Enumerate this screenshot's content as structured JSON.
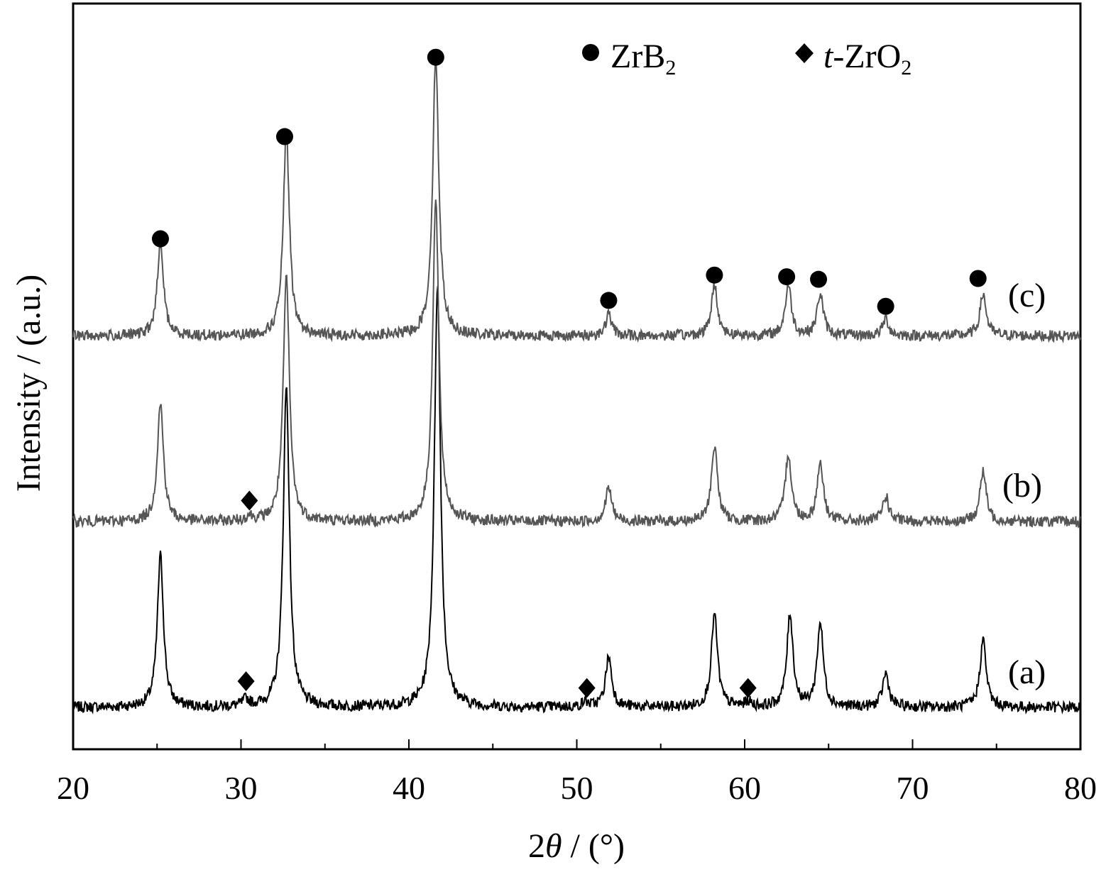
{
  "chart_data": {
    "type": "line",
    "title": "",
    "xlabel_prefix": "2",
    "xlabel_theta": "θ",
    "xlabel_suffix": " / (°)",
    "ylabel": "Intensity / (a.u.)",
    "xlim": [
      20,
      80
    ],
    "x_ticks": [
      20,
      30,
      40,
      50,
      60,
      70,
      80
    ],
    "y_ticks_shown": false,
    "grid": false,
    "legend_position": "top-right",
    "legend": [
      {
        "marker": "circle",
        "label_main": "ZrB",
        "label_sub": "2",
        "label_italic": "",
        "label_after": ""
      },
      {
        "marker": "diamond",
        "label_italic": "t",
        "label_main": "-ZrO",
        "label_sub": "2",
        "label_after": ""
      }
    ],
    "series": [
      {
        "name": "(a)",
        "color": "#000000",
        "baseline": 0,
        "peaks": [
          {
            "x": 25.2,
            "height": 18
          },
          {
            "x": 30.3,
            "height": 0.8
          },
          {
            "x": 32.7,
            "height": 38
          },
          {
            "x": 41.7,
            "height": 50
          },
          {
            "x": 50.5,
            "height": 0.6
          },
          {
            "x": 51.9,
            "height": 6
          },
          {
            "x": 58.2,
            "height": 11
          },
          {
            "x": 60.2,
            "height": 0.6
          },
          {
            "x": 62.7,
            "height": 11
          },
          {
            "x": 64.5,
            "height": 10
          },
          {
            "x": 68.4,
            "height": 4
          },
          {
            "x": 74.2,
            "height": 8
          }
        ],
        "markers": [
          {
            "type": "diamond",
            "x": 30.3,
            "y": 3.1
          },
          {
            "type": "diamond",
            "x": 50.6,
            "y": 2.3
          },
          {
            "type": "diamond",
            "x": 60.2,
            "y": 2.3
          }
        ]
      },
      {
        "name": "(b)",
        "color": "#555555",
        "baseline": 22,
        "peaks": [
          {
            "x": 25.2,
            "height": 14
          },
          {
            "x": 30.5,
            "height": 0.6
          },
          {
            "x": 32.7,
            "height": 29
          },
          {
            "x": 41.6,
            "height": 38
          },
          {
            "x": 51.9,
            "height": 4
          },
          {
            "x": 58.2,
            "height": 9
          },
          {
            "x": 62.6,
            "height": 8
          },
          {
            "x": 64.5,
            "height": 7
          },
          {
            "x": 68.4,
            "height": 3
          },
          {
            "x": 74.2,
            "height": 6
          }
        ],
        "markers": [
          {
            "type": "diamond",
            "x": 30.5,
            "y": 24.5
          }
        ]
      },
      {
        "name": "(c)",
        "color": "#555555",
        "baseline": 44,
        "peaks": [
          {
            "x": 25.2,
            "height": 11
          },
          {
            "x": 32.7,
            "height": 24
          },
          {
            "x": 41.6,
            "height": 33
          },
          {
            "x": 51.9,
            "height": 2.5
          },
          {
            "x": 58.2,
            "height": 6
          },
          {
            "x": 62.6,
            "height": 6
          },
          {
            "x": 64.5,
            "height": 5
          },
          {
            "x": 68.4,
            "height": 2
          },
          {
            "x": 74.2,
            "height": 5
          }
        ],
        "markers": [
          {
            "type": "circle",
            "x": 25.2,
            "y": 55.5
          },
          {
            "type": "circle",
            "x": 32.6,
            "y": 67.6
          },
          {
            "type": "circle",
            "x": 41.6,
            "y": 77
          },
          {
            "type": "circle",
            "x": 51.9,
            "y": 48.2
          },
          {
            "type": "circle",
            "x": 58.2,
            "y": 51.2
          },
          {
            "type": "circle",
            "x": 62.5,
            "y": 51
          },
          {
            "type": "circle",
            "x": 64.4,
            "y": 50.7
          },
          {
            "type": "circle",
            "x": 68.4,
            "y": 47.5
          },
          {
            "type": "circle",
            "x": 73.9,
            "y": 50.8
          }
        ]
      }
    ]
  }
}
